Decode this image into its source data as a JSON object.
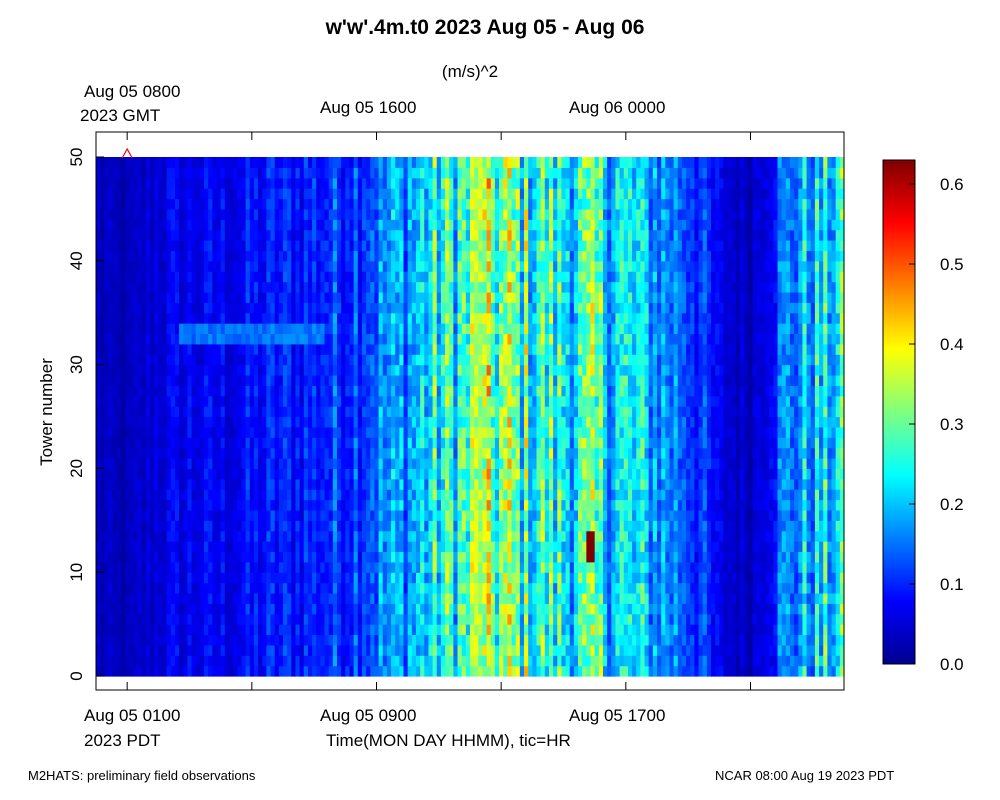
{
  "chart_data": {
    "type": "heatmap",
    "title": "w'w'.4m.t0 2023 Aug 05 - Aug 06",
    "colorbar_label": "(m/s)^2",
    "ylabel": "Tower number",
    "xlabel": "Time(MON DAY HHMM), tic=HR",
    "top_axis": {
      "timezone_label": "2023 GMT",
      "tick_labels": [
        "Aug 05 0800",
        "Aug 05 1600",
        "Aug 06 0000"
      ]
    },
    "bottom_axis": {
      "timezone_label": "2023 PDT",
      "tick_labels": [
        "Aug 05 0100",
        "Aug 05 0900",
        "Aug 05 1700"
      ]
    },
    "x_range_hours_pdt": [
      0,
      24
    ],
    "y_range": [
      0,
      50
    ],
    "y_ticks": [
      "0",
      "10",
      "20",
      "30",
      "40",
      "50"
    ],
    "towers": [
      0,
      49
    ],
    "colorbar": {
      "range": [
        0.0,
        0.63
      ],
      "ticks": [
        "0.0",
        "0.1",
        "0.2",
        "0.3",
        "0.4",
        "0.5",
        "0.6"
      ],
      "colormap": "jet"
    },
    "mean_profile_by_hour": [
      {
        "hour": 0,
        "value": 0.04
      },
      {
        "hour": 1,
        "value": 0.03
      },
      {
        "hour": 2,
        "value": 0.06
      },
      {
        "hour": 3,
        "value": 0.07
      },
      {
        "hour": 4,
        "value": 0.07
      },
      {
        "hour": 5,
        "value": 0.08
      },
      {
        "hour": 6,
        "value": 0.09
      },
      {
        "hour": 7,
        "value": 0.1
      },
      {
        "hour": 8,
        "value": 0.12
      },
      {
        "hour": 9,
        "value": 0.15
      },
      {
        "hour": 10,
        "value": 0.18
      },
      {
        "hour": 11,
        "value": 0.24
      },
      {
        "hour": 12,
        "value": 0.27
      },
      {
        "hour": 13,
        "value": 0.3
      },
      {
        "hour": 14,
        "value": 0.26
      },
      {
        "hour": 15,
        "value": 0.24
      },
      {
        "hour": 16,
        "value": 0.25
      },
      {
        "hour": 17,
        "value": 0.22
      },
      {
        "hour": 18,
        "value": 0.18
      },
      {
        "hour": 19,
        "value": 0.14
      },
      {
        "hour": 20,
        "value": 0.06
      },
      {
        "hour": 21,
        "value": 0.04
      },
      {
        "hour": 22,
        "value": 0.14
      },
      {
        "hour": 23,
        "value": 0.2
      },
      {
        "hour": 24,
        "value": 0.22
      }
    ],
    "features": [
      {
        "description": "elevated band, towers 32-33",
        "hour_start": 2.7,
        "hour_end": 7.3,
        "value": 0.15
      },
      {
        "description": "peak streak",
        "hour": 12.2,
        "value": 0.35
      },
      {
        "description": "hot spot",
        "hour": 15.9,
        "tower": 12,
        "value": 0.63
      }
    ],
    "marker": {
      "symbol": "^",
      "hour": 1.0,
      "tower": 50,
      "color": "#ff0000"
    }
  },
  "footer": {
    "left": "M2HATS: preliminary field observations",
    "right": "NCAR 08:00 Aug 19 2023 PDT"
  }
}
